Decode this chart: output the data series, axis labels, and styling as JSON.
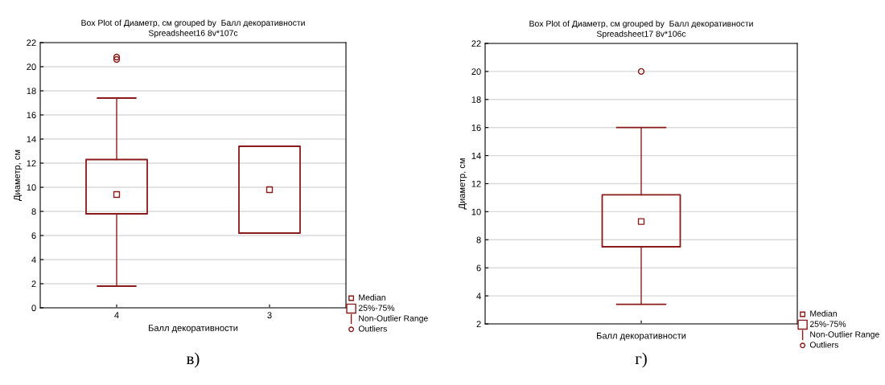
{
  "chart_data": [
    {
      "type": "box",
      "title": "Box Plot of Диаметр, см grouped by  Балл декоративности",
      "subtitle": "Spreadsheet16 8v*107c",
      "xlabel": "Балл декоративности",
      "ylabel": "Диаметр, см",
      "categories": [
        "4",
        "3"
      ],
      "color": "#8b1a1a",
      "boxes": [
        {
          "low": 1.8,
          "q1": 7.8,
          "median": 9.4,
          "q3": 12.3,
          "high": 17.4,
          "outliers": [
            20.6,
            20.8
          ]
        },
        {
          "low": 6.2,
          "q1": 6.2,
          "median": 9.8,
          "q3": 13.4,
          "high": 13.4
        }
      ],
      "ylim": [
        0,
        22
      ],
      "yticks": [
        0,
        2,
        4,
        6,
        8,
        10,
        12,
        14,
        16,
        18,
        20,
        22
      ],
      "grid": "y",
      "annotations": [
        "Median",
        "25%-75%",
        "Non-Outlier Range",
        "Outliers",
        "в)"
      ]
    },
    {
      "type": "box",
      "title": "Box Plot of Диаметр, см grouped by  Балл декоративности",
      "subtitle": "Spreadsheet17 8v*106c",
      "xlabel": "Балл декоративности",
      "ylabel": "Диаметр, см",
      "categories": [
        null
      ],
      "color": "#8b1a1a",
      "boxes": [
        {
          "low": 3.4,
          "q1": 7.5,
          "median": 9.3,
          "q3": 11.2,
          "high": 16,
          "outliers": [
            20
          ]
        }
      ],
      "ylim": [
        2,
        22
      ],
      "yticks": [
        2,
        4,
        6,
        8,
        10,
        12,
        14,
        16,
        18,
        20,
        22
      ],
      "grid": "y",
      "annotations": [
        "Median",
        "25%-75%",
        "Non-Outlier Range",
        "Outliers",
        "г)"
      ]
    }
  ]
}
